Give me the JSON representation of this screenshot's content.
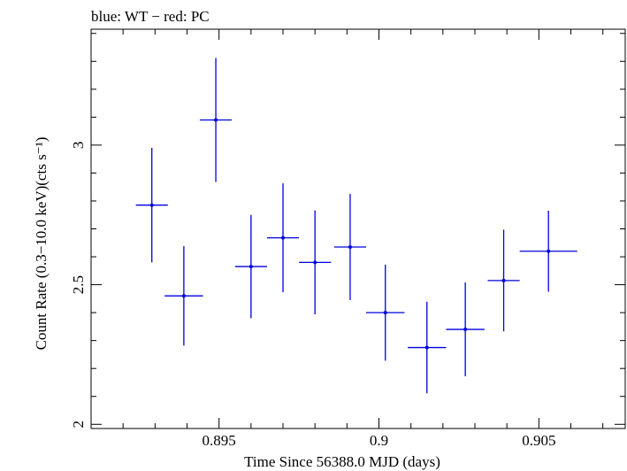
{
  "chart_data": {
    "type": "scatter",
    "title": "blue: WT − red: PC",
    "xlabel": "Time Since 56388.0 MJD (days)",
    "ylabel": "Count Rate (0.3−10.0 keV)(cts s⁻¹)",
    "xlim": [
      0.891,
      0.9077
    ],
    "ylim": [
      1.985,
      3.415
    ],
    "x_ticks": [
      0.895,
      0.9,
      0.905
    ],
    "x_tick_labels": [
      "0.895",
      "0.9",
      "0.905"
    ],
    "y_ticks": [
      2,
      2.5,
      3
    ],
    "y_tick_labels": [
      "2",
      "2.5",
      "3"
    ],
    "grid": false,
    "series": [
      {
        "name": "WT",
        "color": "#0000dd",
        "points": [
          {
            "x": 0.8929,
            "xerr": 0.0005,
            "y": 2.785,
            "yerr": 0.205
          },
          {
            "x": 0.8939,
            "xerr": 0.0006,
            "y": 2.46,
            "yerr": 0.178
          },
          {
            "x": 0.8949,
            "xerr": 0.0005,
            "y": 3.09,
            "yerr": 0.222
          },
          {
            "x": 0.896,
            "xerr": 0.0005,
            "y": 2.565,
            "yerr": 0.185
          },
          {
            "x": 0.897,
            "xerr": 0.0005,
            "y": 2.668,
            "yerr": 0.195
          },
          {
            "x": 0.898,
            "xerr": 0.0005,
            "y": 2.58,
            "yerr": 0.186
          },
          {
            "x": 0.8991,
            "xerr": 0.0005,
            "y": 2.635,
            "yerr": 0.19
          },
          {
            "x": 0.9002,
            "xerr": 0.0006,
            "y": 2.4,
            "yerr": 0.172
          },
          {
            "x": 0.9015,
            "xerr": 0.0006,
            "y": 2.275,
            "yerr": 0.164
          },
          {
            "x": 0.9027,
            "xerr": 0.0006,
            "y": 2.34,
            "yerr": 0.168
          },
          {
            "x": 0.9039,
            "xerr": 0.0005,
            "y": 2.515,
            "yerr": 0.182
          },
          {
            "x": 0.9053,
            "xerr": 0.0009,
            "y": 2.62,
            "yerr": 0.145
          }
        ]
      }
    ]
  }
}
